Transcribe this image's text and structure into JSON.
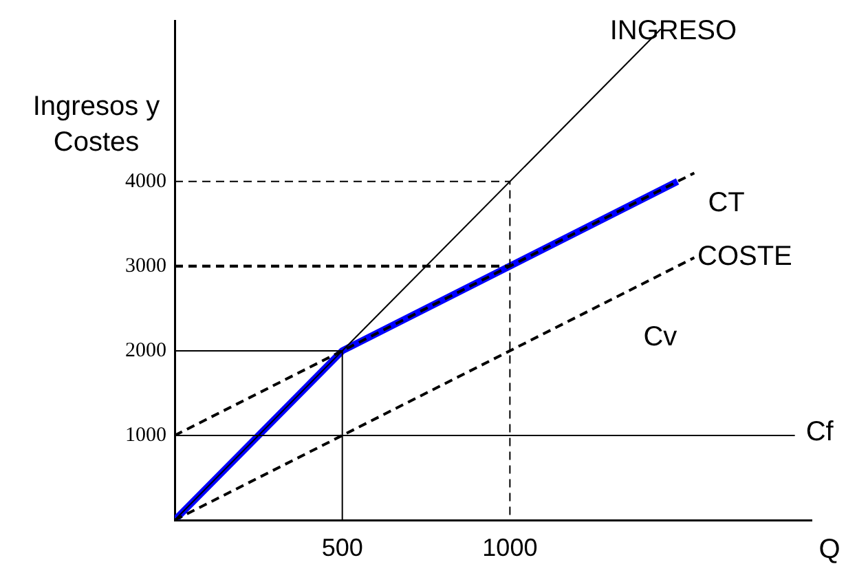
{
  "chart_data": {
    "type": "line",
    "xlabel": "Q",
    "ylabel": "Ingresos y Costes",
    "xlim": [
      0,
      1900
    ],
    "ylim": [
      0,
      5900
    ],
    "xticks": [
      500,
      1000
    ],
    "yticks": [
      1000,
      2000,
      3000,
      4000
    ],
    "grid": false,
    "legend": false,
    "marker": "none",
    "series": [
      {
        "name": "INGRESO",
        "x": [
          0,
          1450
        ],
        "values": [
          0,
          5800
        ],
        "color": "#000000",
        "line_style": "solid"
      },
      {
        "name": "CT",
        "x": [
          0,
          1550
        ],
        "values": [
          1000,
          4100
        ],
        "color": "#000000",
        "line_style": "dashed"
      },
      {
        "name": "Cv",
        "x": [
          0,
          1550
        ],
        "values": [
          0,
          3100
        ],
        "color": "#000000",
        "line_style": "dashed"
      },
      {
        "name": "Cf",
        "x": [
          0,
          1850
        ],
        "values": [
          1000,
          1000
        ],
        "color": "#000000",
        "line_style": "solid"
      },
      {
        "x": [
          500,
          500,
          0
        ],
        "values": [
          0,
          2000,
          2000
        ],
        "color": "#000000",
        "line_style": "solid"
      },
      {
        "x": [
          0,
          1000,
          1000
        ],
        "values": [
          4000,
          4000,
          0
        ],
        "color": "#000000",
        "line_style": "dashed"
      },
      {
        "x": [
          0,
          1000
        ],
        "values": [
          3000,
          3000
        ],
        "color": "#000000",
        "line_style": "dashed"
      },
      {
        "x": [
          0,
          500,
          1500
        ],
        "values": [
          0,
          2000,
          4000
        ],
        "color": "#0000ff",
        "line_style": "solid"
      }
    ],
    "annotations": [
      "COSTE"
    ]
  }
}
